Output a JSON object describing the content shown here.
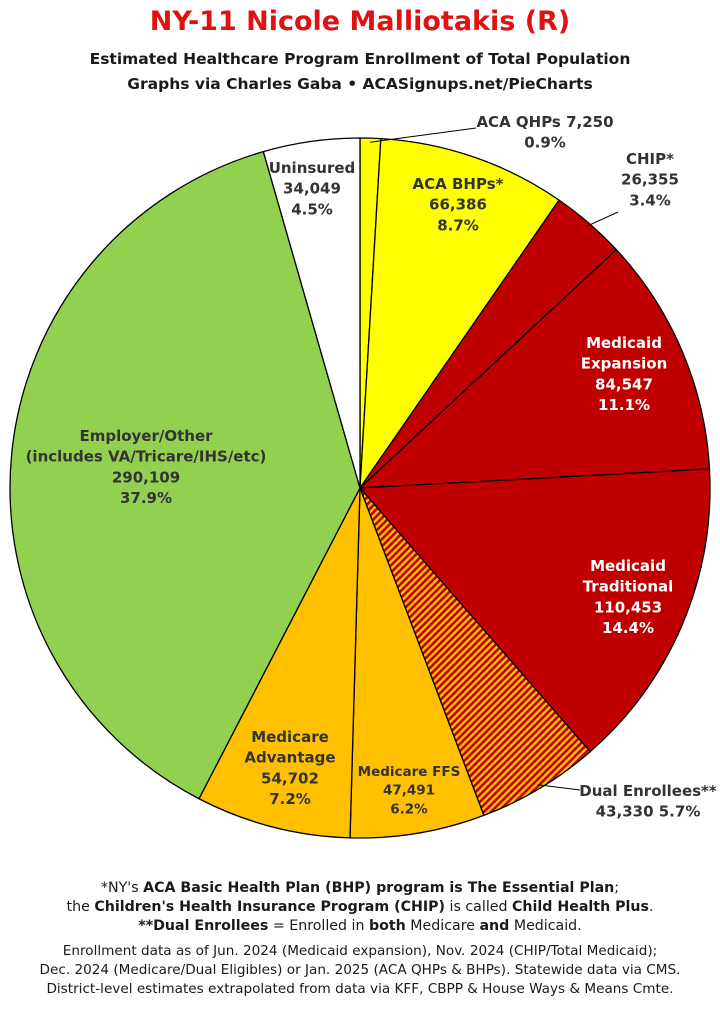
{
  "header": {
    "title": "NY-11 Nicole Malliotakis (R)",
    "subtitle1": "Estimated Healthcare Program Enrollment of Total Population",
    "subtitle2": "Graphs via Charles Gaba  •  ACASignups.net/PieCharts"
  },
  "chart_data": {
    "type": "pie",
    "title": "NY-11 Nicole Malliotakis (R)",
    "start_angle_deg": 0,
    "direction": "clockwise",
    "slices": [
      {
        "label": "ACA QHPs",
        "value": 7250,
        "value_label": "7,250",
        "percent": "0.9%",
        "color": "#ffff00",
        "label_color": "#333333",
        "hatch": false
      },
      {
        "label": "ACA BHPs*",
        "value": 66386,
        "value_label": "66,386",
        "percent": "8.7%",
        "color": "#ffff00",
        "label_color": "#333333",
        "hatch": false
      },
      {
        "label": "CHIP*",
        "value": 26355,
        "value_label": "26,355",
        "percent": "3.4%",
        "color": "#c00000",
        "label_color": "#333333",
        "hatch": false
      },
      {
        "label": "Medicaid Expansion",
        "value": 84547,
        "value_label": "84,547",
        "percent": "11.1%",
        "color": "#c00000",
        "label_color": "#ffffff",
        "hatch": false
      },
      {
        "label": "Medicaid Traditional",
        "value": 110453,
        "value_label": "110,453",
        "percent": "14.4%",
        "color": "#c00000",
        "label_color": "#ffffff",
        "hatch": false
      },
      {
        "label": "Dual Enrollees**",
        "value": 43330,
        "value_label": "43,330",
        "percent": "5.7%",
        "color": "#c00000",
        "label_color": "#333333",
        "hatch": true
      },
      {
        "label": "Medicare FFS",
        "value": 47491,
        "value_label": "47,491",
        "percent": "6.2%",
        "color": "#ffc000",
        "label_color": "#333333",
        "hatch": false
      },
      {
        "label": "Medicare Advantage",
        "value": 54702,
        "value_label": "54,702",
        "percent": "7.2%",
        "color": "#ffc000",
        "label_color": "#333333",
        "hatch": false
      },
      {
        "label": "Employer/Other (includes VA/Tricare/IHS/etc)",
        "value": 290109,
        "value_label": "290,109",
        "percent": "37.9%",
        "color": "#92d050",
        "label_color": "#333333",
        "hatch": false
      },
      {
        "label": "Uninsured",
        "value": 34049,
        "value_label": "34,049",
        "percent": "4.5%",
        "color": "#ffffff",
        "label_color": "#333333",
        "hatch": false
      }
    ]
  },
  "footnotes": {
    "l1a": "*NY's ",
    "l1b": "ACA Basic Health Plan (BHP) program is The Essential Plan",
    "l1c": ";",
    "l2a": "the ",
    "l2b": "Children's Health Insurance Program (CHIP)",
    "l2c": " is called ",
    "l2d": "Child Health Plus",
    "l2e": ".",
    "l3a": "**Dual Enrollees",
    "l3b": " = Enrolled in ",
    "l3c": "both",
    "l3d": " Medicare ",
    "l3e": "and",
    "l3f": " Medicaid.",
    "l4": "Enrollment data as of Jun. 2024 (Medicaid expansion), Nov. 2024 (CHIP/Total Medicaid);",
    "l5": "Dec. 2024 (Medicare/Dual Eligibles) or Jan. 2025 (ACA QHPs & BHPs). Statewide data via CMS.",
    "l6": "District-level estimates extrapolated from data via KFF, CBPP & House Ways & Means Cmte."
  }
}
